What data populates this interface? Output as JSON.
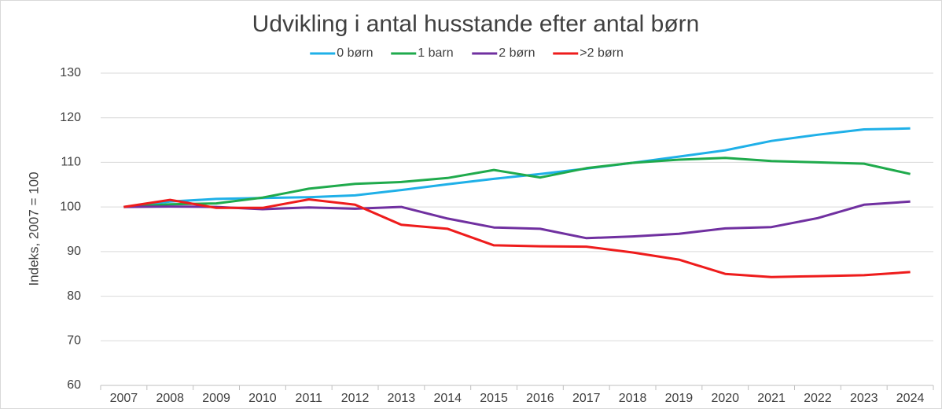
{
  "chart_data": {
    "type": "line",
    "title": "Udvikling i antal husstande efter antal børn",
    "y_label": "Indeks, 2007 = 100",
    "categories": [
      "2007",
      "2008",
      "2009",
      "2010",
      "2011",
      "2012",
      "2013",
      "2014",
      "2015",
      "2016",
      "2017",
      "2018",
      "2019",
      "2020",
      "2021",
      "2022",
      "2023",
      "2024"
    ],
    "series": [
      {
        "name": "0 børn",
        "color": "#1fb0e8",
        "values": [
          100,
          101.2,
          101.8,
          102,
          102.2,
          102.6,
          103.8,
          105.1,
          106.3,
          107.4,
          108.6,
          109.9,
          111.3,
          112.7,
          114.8,
          116.2,
          117.4,
          117.6
        ]
      },
      {
        "name": "1 barn",
        "color": "#1faa4c",
        "values": [
          100,
          100.6,
          100.8,
          102.1,
          104.1,
          105.2,
          105.6,
          106.5,
          108.3,
          106.6,
          108.7,
          109.9,
          110.6,
          111,
          110.3,
          110,
          109.7,
          107.4
        ]
      },
      {
        "name": "2 børn",
        "color": "#7030a0",
        "values": [
          100,
          100.1,
          100,
          99.5,
          99.9,
          99.6,
          100,
          97.4,
          95.4,
          95.1,
          93,
          93.4,
          94,
          95.2,
          95.5,
          97.5,
          100.5,
          101.2
        ]
      },
      {
        "name": ">2 børn",
        "color": "#ee1c1c",
        "values": [
          100,
          101.6,
          99.8,
          99.8,
          101.7,
          100.5,
          96,
          95.1,
          91.4,
          91.2,
          91.1,
          89.8,
          88.2,
          85,
          84.3,
          84.5,
          84.7,
          85.4
        ]
      }
    ],
    "ylim": [
      60,
      130
    ],
    "yticks": [
      60,
      70,
      80,
      90,
      100,
      110,
      120,
      130
    ],
    "grid": true,
    "legend": "top"
  }
}
